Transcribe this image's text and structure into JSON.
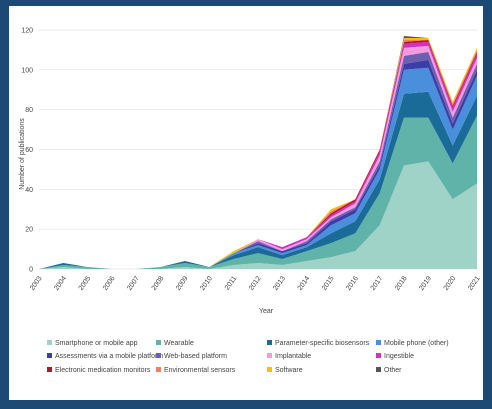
{
  "chart_data": {
    "type": "area",
    "stacked": true,
    "title": "",
    "xlabel": "Year",
    "ylabel": "Number of publications",
    "ylim": [
      0,
      120
    ],
    "yticks": [
      0,
      20,
      40,
      60,
      80,
      100,
      120
    ],
    "grid": "horizontal",
    "legend_position": "bottom",
    "x": [
      "2003",
      "2004",
      "2005",
      "2006",
      "2007",
      "2008",
      "2009",
      "2010",
      "2011",
      "2012",
      "2013",
      "2014",
      "2015",
      "2016",
      "2017",
      "2018",
      "2019",
      "2020",
      "2021"
    ],
    "series": [
      {
        "name": "Smartphone or mobile app",
        "color": "#9fd3c7",
        "values": [
          0,
          1,
          0,
          0,
          0,
          0,
          1,
          0,
          2,
          3,
          2,
          4,
          6,
          9,
          22,
          52,
          54,
          35,
          43
        ]
      },
      {
        "name": "Wearable",
        "color": "#5fb3a8",
        "values": [
          0,
          1,
          1,
          0,
          0,
          1,
          2,
          1,
          3,
          5,
          3,
          5,
          7,
          9,
          16,
          24,
          22,
          18,
          34
        ]
      },
      {
        "name": "Parameter-specific biosensors",
        "color": "#1b6b99",
        "values": [
          0,
          1,
          0,
          0,
          0,
          0,
          1,
          0,
          2,
          3,
          2,
          2,
          5,
          6,
          7,
          12,
          13,
          9,
          10
        ]
      },
      {
        "name": "Mobile phone (other)",
        "color": "#4a8fdb",
        "values": [
          0,
          0,
          0,
          0,
          0,
          0,
          0,
          0,
          1,
          1,
          1,
          1,
          4,
          4,
          5,
          12,
          12,
          8,
          10
        ]
      },
      {
        "name": "Assessments via a mobile platform",
        "color": "#3d3da8",
        "values": [
          0,
          0,
          0,
          0,
          0,
          0,
          0,
          0,
          0,
          1,
          1,
          1,
          2,
          2,
          2,
          3,
          4,
          3,
          3
        ]
      },
      {
        "name": "Web-based platform",
        "color": "#6e5fb0",
        "values": [
          0,
          0,
          0,
          0,
          0,
          0,
          0,
          0,
          0,
          1,
          0,
          1,
          1,
          1,
          2,
          4,
          4,
          3,
          3
        ]
      },
      {
        "name": "Implantable",
        "color": "#f29be0",
        "values": [
          0,
          0,
          0,
          0,
          0,
          0,
          0,
          0,
          0,
          1,
          1,
          1,
          1,
          2,
          3,
          4,
          3,
          3,
          3
        ]
      },
      {
        "name": "Ingestible",
        "color": "#d42fc0",
        "values": [
          0,
          0,
          0,
          0,
          0,
          0,
          0,
          0,
          0,
          0,
          1,
          1,
          1,
          1,
          2,
          2,
          2,
          2,
          2
        ]
      },
      {
        "name": "Electronic medication monitors",
        "color": "#b3162f",
        "values": [
          0,
          0,
          0,
          0,
          0,
          0,
          0,
          0,
          0,
          0,
          0,
          0,
          1,
          1,
          1,
          1,
          1,
          1,
          1
        ]
      },
      {
        "name": "Environmental sensors",
        "color": "#f08060",
        "values": [
          0,
          0,
          0,
          0,
          0,
          0,
          0,
          0,
          0,
          0,
          0,
          0,
          1,
          0,
          0,
          1,
          0,
          1,
          1
        ]
      },
      {
        "name": "Software",
        "color": "#f5c000",
        "values": [
          0,
          0,
          0,
          0,
          0,
          0,
          0,
          0,
          1,
          0,
          0,
          0,
          1,
          0,
          0,
          1,
          1,
          1,
          1
        ]
      },
      {
        "name": "Other",
        "color": "#555555",
        "values": [
          0,
          0,
          0,
          0,
          0,
          0,
          0,
          0,
          0,
          0,
          0,
          0,
          0,
          0,
          0,
          1,
          0,
          0,
          0
        ]
      }
    ]
  }
}
